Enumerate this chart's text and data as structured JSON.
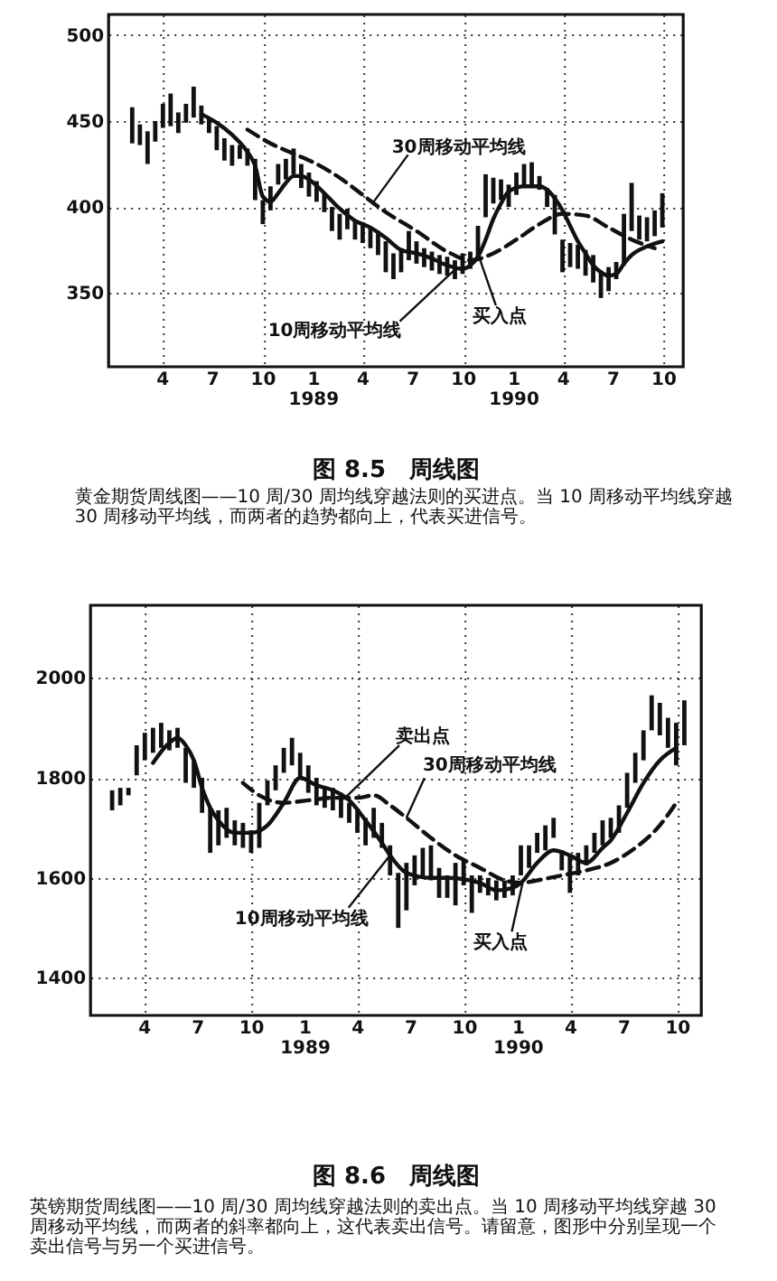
{
  "chart_data": [
    {
      "type": "bar",
      "title": "图 8.5　周线图",
      "annotations": [
        {
          "text": "30周移动平均线",
          "x": "1989-04-20",
          "y": 403
        },
        {
          "text": "10周移动平均线",
          "x": "1989-09-20",
          "y": 365
        },
        {
          "text": "买入点",
          "x": "1989-10-30",
          "y": 370
        },
        "黄金期货周线图——10 周/30 周均线穿越法则的买进点。当 10 周移动平均线穿越 30 周移动平均线，而两者的趋势都向上，代表买进信号。"
      ],
      "x": [
        "1988-02-05",
        "1988-02-19",
        "1988-03-04",
        "1988-03-18",
        "1988-04-01",
        "1988-04-15",
        "1988-04-29",
        "1988-05-13",
        "1988-05-27",
        "1988-06-10",
        "1988-06-24",
        "1988-07-08",
        "1988-07-22",
        "1988-08-05",
        "1988-08-19",
        "1988-09-02",
        "1988-09-16",
        "1988-09-30",
        "1988-10-14",
        "1988-10-28",
        "1988-11-11",
        "1988-11-25",
        "1988-12-09",
        "1988-12-23",
        "1989-01-06",
        "1989-01-20",
        "1989-02-03",
        "1989-02-17",
        "1989-03-03",
        "1989-03-17",
        "1989-03-31",
        "1989-04-14",
        "1989-04-28",
        "1989-05-12",
        "1989-05-26",
        "1989-06-09",
        "1989-06-23",
        "1989-07-07",
        "1989-07-21",
        "1989-08-04",
        "1989-08-18",
        "1989-09-01",
        "1989-09-15",
        "1989-09-29",
        "1989-10-13",
        "1989-10-27",
        "1989-11-10",
        "1989-11-24",
        "1989-12-08",
        "1989-12-22",
        "1990-01-05",
        "1990-01-19",
        "1990-02-02",
        "1990-02-16",
        "1990-03-02",
        "1990-03-16",
        "1990-03-30",
        "1990-04-13",
        "1990-04-27",
        "1990-05-11",
        "1990-05-25",
        "1990-06-08",
        "1990-06-22",
        "1990-07-06",
        "1990-07-20",
        "1990-08-03",
        "1990-08-17",
        "1990-08-31",
        "1990-09-14",
        "1990-09-28"
      ],
      "xlim": [
        "1987-12-24",
        "1990-11-05"
      ],
      "xticks": [
        {
          "value": "1988-04-01",
          "label": "4"
        },
        {
          "value": "1988-07-01",
          "label": "7"
        },
        {
          "value": "1988-10-01",
          "label": "10"
        },
        {
          "value": "1989-01-01",
          "label": "1\n1989"
        },
        {
          "value": "1989-04-01",
          "label": "4"
        },
        {
          "value": "1989-07-01",
          "label": "7"
        },
        {
          "value": "1989-10-01",
          "label": "10"
        },
        {
          "value": "1990-01-01",
          "label": "1\n1990"
        },
        {
          "value": "1990-04-01",
          "label": "4"
        },
        {
          "value": "1990-07-01",
          "label": "7"
        },
        {
          "value": "1990-10-01",
          "label": "10"
        }
      ],
      "ylim": [
        307,
        512
      ],
      "yticks": [
        350,
        400,
        450,
        500
      ],
      "grid": true,
      "series": [
        {
          "color": "#111111",
          "base": [
            437,
            436,
            425,
            438,
            446,
            447,
            443,
            449,
            452,
            448,
            443,
            433,
            427,
            424,
            428,
            424,
            404,
            390,
            398,
            413,
            416,
            419,
            411,
            406,
            403,
            397,
            386,
            381,
            387,
            381,
            379,
            376,
            372,
            362,
            358,
            362,
            369,
            367,
            365,
            363,
            361,
            360,
            358,
            361,
            364,
            371,
            394,
            402,
            404,
            400,
            407,
            412,
            412,
            410,
            400,
            384,
            362,
            365,
            364,
            360,
            356,
            347,
            351,
            358,
            366,
            386,
            381,
            380,
            383,
            388
          ],
          "values": [
            21,
            12,
            19,
            12,
            14,
            19,
            12,
            11,
            18,
            11,
            9,
            14,
            13,
            12,
            8,
            10,
            24,
            14,
            14,
            12,
            12,
            15,
            14,
            14,
            12,
            11,
            14,
            15,
            12,
            11,
            12,
            12,
            14,
            18,
            15,
            14,
            17,
            13,
            11,
            11,
            11,
            11,
            11,
            12,
            10,
            18,
            25,
            15,
            12,
            13,
            13,
            13,
            14,
            8,
            11,
            23,
            19,
            14,
            14,
            15,
            16,
            16,
            14,
            10,
            30,
            28,
            14,
            14,
            15,
            20
          ]
        },
        {
          "type": "line",
          "color": "#111111",
          "line_style": "solid",
          "x": [
            "1988-06-10",
            "1988-07-08",
            "1988-08-05",
            "1988-09-02",
            "1988-09-16",
            "1988-09-30",
            "1988-10-14",
            "1988-10-28",
            "1988-11-11",
            "1988-11-25",
            "1988-12-09",
            "1988-12-23",
            "1989-01-20",
            "1989-02-17",
            "1989-03-17",
            "1989-04-14",
            "1989-05-12",
            "1989-06-09",
            "1989-07-07",
            "1989-08-04",
            "1989-09-01",
            "1989-09-29",
            "1989-10-13",
            "1989-10-27",
            "1989-11-10",
            "1989-11-24",
            "1989-12-08",
            "1989-12-22",
            "1990-01-19",
            "1990-02-16",
            "1990-03-02",
            "1990-03-16",
            "1990-03-30",
            "1990-04-13",
            "1990-04-27",
            "1990-05-11",
            "1990-05-25",
            "1990-06-08",
            "1990-06-22",
            "1990-07-06",
            "1990-07-20",
            "1990-08-03",
            "1990-08-31",
            "1990-09-28"
          ],
          "values": [
            454,
            449,
            442,
            432,
            424,
            406,
            403,
            408,
            414,
            418,
            418,
            416,
            408,
            399,
            392,
            388,
            382,
            375,
            373,
            370,
            366,
            364,
            366,
            371,
            381,
            393,
            402,
            409,
            412,
            412,
            410,
            405,
            398,
            389,
            380,
            373,
            366,
            362,
            360,
            361,
            367,
            372,
            377,
            380
          ]
        },
        {
          "type": "line",
          "color": "#111111",
          "line_style": "dashed",
          "x": [
            "1988-09-02",
            "1988-10-14",
            "1988-11-25",
            "1989-01-06",
            "1989-02-17",
            "1989-03-31",
            "1989-05-12",
            "1989-07-07",
            "1989-09-01",
            "1989-10-13",
            "1989-11-24",
            "1990-01-05",
            "1990-02-16",
            "1990-03-30",
            "1990-05-11",
            "1990-06-22",
            "1990-08-03",
            "1990-09-14"
          ],
          "values": [
            445,
            437,
            431,
            425,
            417,
            407,
            397,
            386,
            374,
            369,
            373,
            381,
            390,
            396,
            395,
            388,
            381,
            376
          ]
        }
      ]
    },
    {
      "type": "bar",
      "title": "图 8.6　周线图",
      "annotations": [
        {
          "text": "卖出点",
          "x": "1989-03-10",
          "y": 1760
        },
        {
          "text": "30周移动平均线",
          "x": "1989-06-23",
          "y": 1720
        },
        {
          "text": "10周移动平均线",
          "x": "1989-05-26",
          "y": 1645
        },
        {
          "text": "买入点",
          "x": "1990-01-08",
          "y": 1590
        },
        "英镑期货周线图——10 周/30 周均线穿越法则的卖出点。当 10 周移动平均线穿越 30 周移动平均线，而两者的斜率都向上，这代表卖出信号。请留意，图形中分别呈现一个卖出信号与另一个买进信号。"
      ],
      "x": [
        "1988-02-05",
        "1988-02-19",
        "1988-03-04",
        "1988-03-18",
        "1988-04-01",
        "1988-04-15",
        "1988-04-29",
        "1988-05-13",
        "1988-05-27",
        "1988-06-10",
        "1988-06-24",
        "1988-07-08",
        "1988-07-22",
        "1988-08-05",
        "1988-08-19",
        "1988-09-02",
        "1988-09-16",
        "1988-09-30",
        "1988-10-14",
        "1988-10-28",
        "1988-11-11",
        "1988-11-25",
        "1988-12-09",
        "1988-12-23",
        "1989-01-06",
        "1989-01-20",
        "1989-02-03",
        "1989-02-17",
        "1989-03-03",
        "1989-03-17",
        "1989-03-31",
        "1989-04-14",
        "1989-04-28",
        "1989-05-12",
        "1989-05-26",
        "1989-06-09",
        "1989-06-23",
        "1989-07-07",
        "1989-07-21",
        "1989-08-04",
        "1989-08-18",
        "1989-09-01",
        "1989-09-15",
        "1989-09-29",
        "1989-10-13",
        "1989-10-27",
        "1989-11-10",
        "1989-11-24",
        "1989-12-08",
        "1989-12-22",
        "1990-01-05",
        "1990-01-19",
        "1990-02-02",
        "1990-02-16",
        "1990-03-02",
        "1990-03-16",
        "1990-03-30",
        "1990-04-13",
        "1990-04-27",
        "1990-05-11",
        "1990-05-25",
        "1990-06-08",
        "1990-06-22",
        "1990-07-06",
        "1990-07-20",
        "1990-08-03",
        "1990-08-17",
        "1990-08-31",
        "1990-09-14",
        "1990-09-28",
        "1990-10-12"
      ],
      "xlim": [
        "1987-12-30",
        "1990-11-10"
      ],
      "xticks": [
        {
          "value": "1988-04-01",
          "label": "4"
        },
        {
          "value": "1988-07-01",
          "label": "7"
        },
        {
          "value": "1988-10-01",
          "label": "10"
        },
        {
          "value": "1989-01-01",
          "label": "1\n1989"
        },
        {
          "value": "1989-04-01",
          "label": "4"
        },
        {
          "value": "1989-07-01",
          "label": "7"
        },
        {
          "value": "1989-10-01",
          "label": "10"
        },
        {
          "value": "1990-01-01",
          "label": "1\n1990"
        },
        {
          "value": "1990-04-01",
          "label": "4"
        },
        {
          "value": "1990-07-01",
          "label": "7"
        },
        {
          "value": "1990-10-01",
          "label": "10"
        }
      ],
      "ylim": [
        1325,
        2145
      ],
      "yticks": [
        1400,
        1600,
        1800,
        2000
      ],
      "grid": true,
      "series": [
        {
          "color": "#111111",
          "base": [
            1735,
            1745,
            1765,
            1805,
            1835,
            1850,
            1860,
            1855,
            1860,
            1790,
            1780,
            1730,
            1650,
            1665,
            1680,
            1665,
            1660,
            1650,
            1660,
            1745,
            1775,
            1810,
            1825,
            1800,
            1770,
            1745,
            1740,
            1735,
            1720,
            1710,
            1690,
            1665,
            1680,
            1660,
            1605,
            1500,
            1535,
            1585,
            1605,
            1595,
            1560,
            1560,
            1545,
            1585,
            1530,
            1570,
            1565,
            1555,
            1560,
            1565,
            1605,
            1620,
            1650,
            1655,
            1680,
            1615,
            1570,
            1605,
            1625,
            1650,
            1665,
            1680,
            1690,
            1740,
            1790,
            1835,
            1895,
            1885,
            1860,
            1825,
            1865
          ],
          "values": [
            40,
            35,
            15,
            60,
            55,
            50,
            50,
            40,
            40,
            70,
            55,
            70,
            90,
            70,
            60,
            50,
            50,
            45,
            90,
            50,
            50,
            50,
            55,
            50,
            55,
            55,
            40,
            45,
            50,
            40,
            45,
            55,
            60,
            50,
            60,
            110,
            95,
            60,
            55,
            70,
            60,
            45,
            85,
            50,
            75,
            35,
            35,
            40,
            35,
            40,
            60,
            45,
            40,
            50,
            40,
            40,
            75,
            45,
            40,
            40,
            50,
            40,
            55,
            70,
            60,
            60,
            70,
            65,
            60,
            85,
            90
          ]
        },
        {
          "type": "line",
          "color": "#111111",
          "line_style": "solid",
          "x": [
            "1988-04-15",
            "1988-05-13",
            "1988-05-27",
            "1988-06-10",
            "1988-06-24",
            "1988-07-08",
            "1988-07-22",
            "1988-08-05",
            "1988-09-02",
            "1988-09-30",
            "1988-10-28",
            "1988-11-25",
            "1988-12-23",
            "1989-01-20",
            "1989-02-17",
            "1989-03-17",
            "1989-04-14",
            "1989-05-12",
            "1989-05-26",
            "1989-06-23",
            "1989-08-04",
            "1989-09-01",
            "1989-10-27",
            "1989-11-24",
            "1989-12-22",
            "1990-01-05",
            "1990-02-02",
            "1990-03-02",
            "1990-03-30",
            "1990-04-27",
            "1990-05-25",
            "1990-06-08",
            "1990-07-06",
            "1990-08-03",
            "1990-08-31",
            "1990-09-28"
          ],
          "values": [
            1830,
            1870,
            1880,
            1865,
            1835,
            1780,
            1740,
            1715,
            1690,
            1690,
            1705,
            1750,
            1800,
            1785,
            1775,
            1755,
            1715,
            1670,
            1645,
            1610,
            1600,
            1600,
            1590,
            1575,
            1580,
            1590,
            1630,
            1655,
            1645,
            1630,
            1660,
            1675,
            1730,
            1790,
            1835,
            1860
          ]
        },
        {
          "type": "line",
          "color": "#111111",
          "line_style": "dashed",
          "x": [
            "1988-09-16",
            "1988-10-14",
            "1988-11-25",
            "1989-01-06",
            "1989-02-17",
            "1989-03-31",
            "1989-04-28",
            "1989-05-26",
            "1989-06-23",
            "1989-08-04",
            "1989-09-15",
            "1989-10-27",
            "1989-12-08",
            "1990-01-05",
            "1990-02-02",
            "1990-03-16",
            "1990-04-27",
            "1990-06-08",
            "1990-07-20",
            "1990-08-31",
            "1990-09-28"
          ],
          "values": [
            1790,
            1765,
            1750,
            1755,
            1760,
            1760,
            1765,
            1745,
            1720,
            1680,
            1645,
            1620,
            1595,
            1590,
            1595,
            1605,
            1615,
            1630,
            1660,
            1705,
            1750
          ]
        }
      ]
    }
  ]
}
